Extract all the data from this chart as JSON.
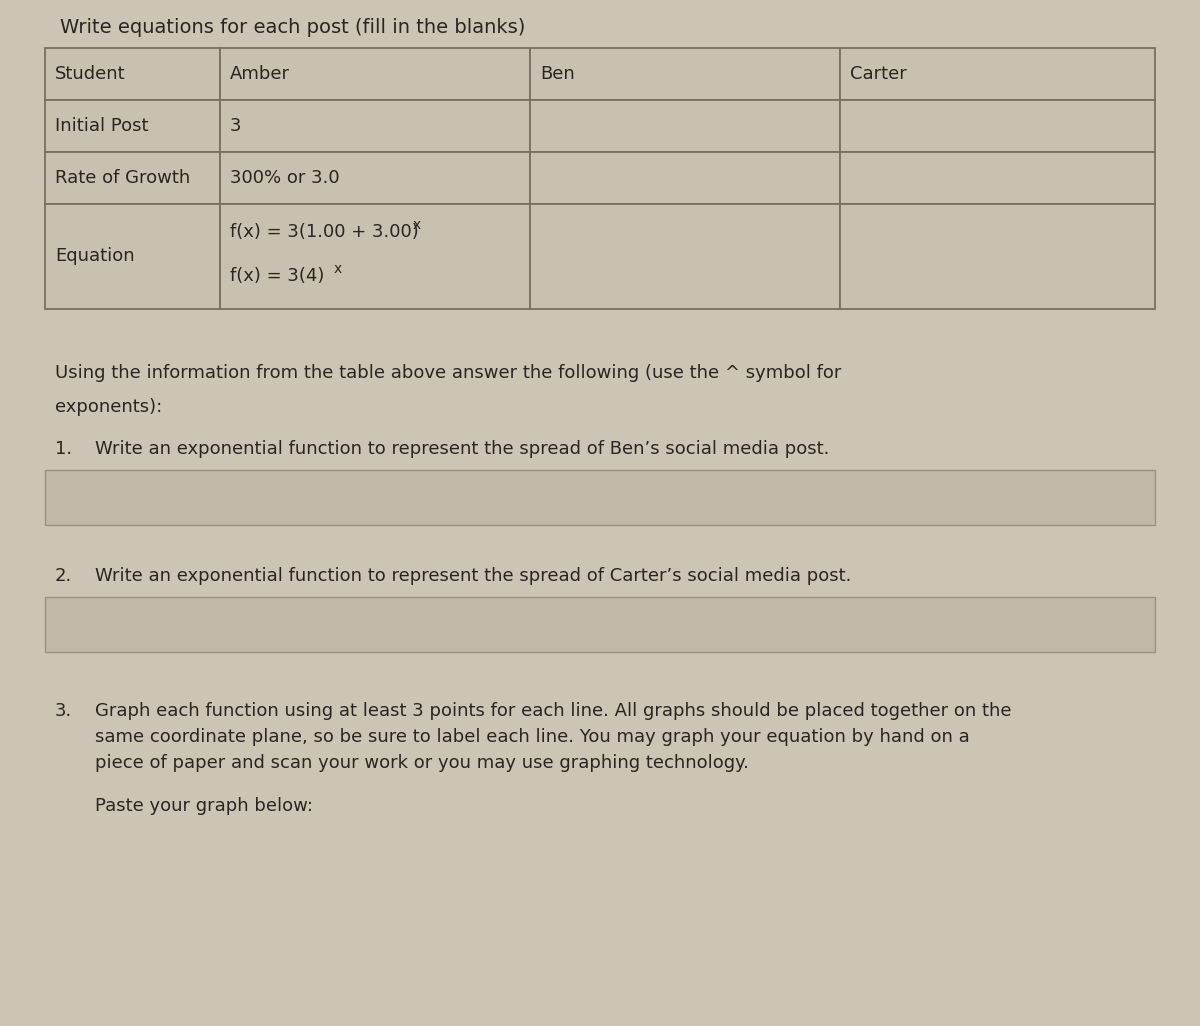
{
  "title": "Write equations for each post (fill in the blanks)",
  "row_labels": [
    "Student",
    "Initial Post",
    "Rate of Growth",
    "Equation"
  ],
  "col_headers": [
    "Amber",
    "Ben",
    "Carter"
  ],
  "amber_initial": "3",
  "amber_rate": "300% or 3.0",
  "amber_eq1": "f(x) = 3(1.00 + 3.00)",
  "amber_eq1_super": "x",
  "amber_eq2": "f(x) = 3(4)",
  "amber_eq2_super": "x",
  "instructions_line1": "Using the information from the table above answer the following (use the ^ symbol for",
  "instructions_line2": "exponents):",
  "q1_num": "1.",
  "q1_text": "Write an exponential function to represent the spread of Ben’s social media post.",
  "q2_num": "2.",
  "q2_text": "Write an exponential function to represent the spread of Carter’s social media post.",
  "q3_num": "3.",
  "q3_line1": "Graph each function using at least 3 points for each line. All graphs should be placed together on the",
  "q3_line2": "same coordinate plane, so be sure to label each line. You may graph your equation by hand on a",
  "q3_line3": "piece of paper and scan your work or you may use graphing technology.",
  "paste_text": "Paste your graph below:",
  "bg_color": "#ccc5b5",
  "cell_color": "#c8c1b1",
  "border_color": "#7a7060",
  "text_dark": "#2a2520",
  "answer_box_color": "#c0b9a9",
  "answer_box_border": "#9a9080"
}
